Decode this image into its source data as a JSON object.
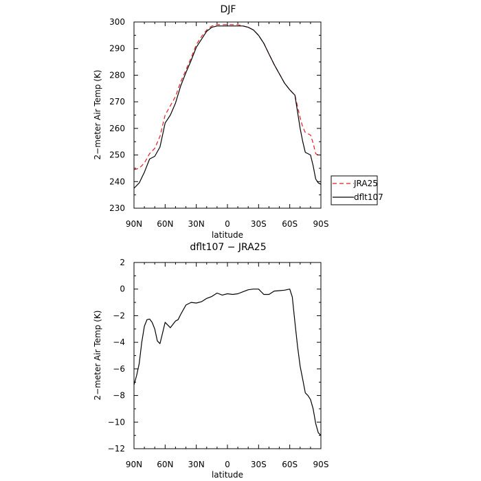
{
  "chart_data": [
    {
      "type": "line",
      "title": "DJF",
      "xlabel": "latitude",
      "ylabel": "2−meter Air Temp (K)",
      "xlim": [
        -90,
        90
      ],
      "ylim": [
        230,
        300
      ],
      "x_ticks": [
        -90,
        -60,
        -30,
        0,
        30,
        60,
        90
      ],
      "x_tick_labels": [
        "90N",
        "60N",
        "30N",
        "0",
        "30S",
        "60S",
        "90S"
      ],
      "y_ticks": [
        230,
        240,
        250,
        260,
        270,
        280,
        290,
        300
      ],
      "y_tick_labels": [
        "230",
        "240",
        "250",
        "260",
        "270",
        "280",
        "290",
        "300"
      ],
      "legend": {
        "position": "right"
      },
      "series": [
        {
          "name": "JRA25",
          "style": "dashed",
          "color": "#e41a1c",
          "x": [
            -90,
            -85,
            -80,
            -75,
            -70,
            -65,
            -60,
            -55,
            -50,
            -45,
            -40,
            -35,
            -30,
            -25,
            -20,
            -15,
            -10,
            -5,
            0,
            5,
            10,
            15,
            20,
            25,
            30,
            35,
            40,
            45,
            50,
            55,
            60,
            65,
            70,
            72.5,
            75,
            77.5,
            80,
            82.5,
            85,
            87.5,
            90
          ],
          "y": [
            244.5,
            245,
            247,
            250.5,
            252.5,
            257,
            265,
            268.5,
            272,
            277.5,
            282,
            286.5,
            291.5,
            294.5,
            297,
            298.5,
            299,
            299,
            299,
            299,
            299,
            298.5,
            298,
            297,
            295,
            292,
            288,
            284,
            280.5,
            277,
            274.5,
            272.5,
            264,
            260.5,
            258.5,
            258,
            257.5,
            254.5,
            250.5,
            250,
            250
          ]
        },
        {
          "name": "dflt107",
          "style": "solid",
          "color": "#000000",
          "x": [
            -90,
            -85,
            -80,
            -75,
            -70,
            -65,
            -60,
            -55,
            -50,
            -45,
            -40,
            -35,
            -30,
            -25,
            -20,
            -15,
            -10,
            -5,
            0,
            5,
            10,
            15,
            20,
            25,
            30,
            35,
            40,
            45,
            50,
            55,
            60,
            65,
            70,
            72.5,
            75,
            77.5,
            80,
            82.5,
            85,
            87.5,
            90
          ],
          "y": [
            237.5,
            239.5,
            243.5,
            248.5,
            249.5,
            253,
            262,
            265,
            269.5,
            276,
            281,
            285.5,
            290.5,
            293.5,
            296.5,
            298,
            298.5,
            298.5,
            298.5,
            298.5,
            298.5,
            298.5,
            298,
            297,
            295,
            292,
            288,
            284,
            280.5,
            277,
            274.5,
            272.5,
            260,
            255,
            251,
            250.5,
            250,
            246,
            241,
            239.5,
            239
          ]
        }
      ]
    },
    {
      "type": "line",
      "title": "dflt107 − JRA25",
      "xlabel": "latitude",
      "ylabel": "2−meter Air Temp (K)",
      "xlim": [
        -90,
        90
      ],
      "ylim": [
        -12,
        2
      ],
      "x_ticks": [
        -90,
        -60,
        -30,
        0,
        30,
        60,
        90
      ],
      "x_tick_labels": [
        "90N",
        "60N",
        "30N",
        "0",
        "30S",
        "60S",
        "90S"
      ],
      "y_ticks": [
        -12,
        -10,
        -8,
        -6,
        -4,
        -2,
        0,
        2
      ],
      "y_tick_labels": [
        "−12",
        "−10",
        "−8",
        "−6",
        "−4",
        "−2",
        "0",
        "2"
      ],
      "series": [
        {
          "style": "solid",
          "color": "#000000",
          "x": [
            -90,
            -87.5,
            -85,
            -82.5,
            -80,
            -77.5,
            -75,
            -72.5,
            -70,
            -67.5,
            -65,
            -62.5,
            -60,
            -55,
            -50,
            -47.5,
            -45,
            -40,
            -35,
            -30,
            -25,
            -20,
            -15,
            -10,
            -5,
            0,
            5,
            10,
            15,
            20,
            25,
            30,
            35,
            40,
            45,
            50,
            55,
            60,
            62.5,
            65,
            67.5,
            70,
            72.5,
            75,
            77.5,
            80,
            82.5,
            85,
            87.5,
            90
          ],
          "y": [
            -7.2,
            -6.5,
            -5.6,
            -4.0,
            -2.8,
            -2.3,
            -2.25,
            -2.5,
            -3.0,
            -3.9,
            -4.1,
            -3.3,
            -2.5,
            -2.9,
            -2.4,
            -2.3,
            -1.9,
            -1.2,
            -1.0,
            -1.05,
            -0.95,
            -0.7,
            -0.55,
            -0.3,
            -0.45,
            -0.35,
            -0.4,
            -0.35,
            -0.2,
            -0.05,
            0.0,
            0.0,
            -0.4,
            -0.4,
            -0.15,
            -0.12,
            -0.08,
            0.0,
            -0.6,
            -2.5,
            -4.3,
            -5.8,
            -6.8,
            -7.8,
            -8.0,
            -8.3,
            -9.0,
            -10.1,
            -10.8,
            -11.0
          ]
        }
      ]
    }
  ]
}
